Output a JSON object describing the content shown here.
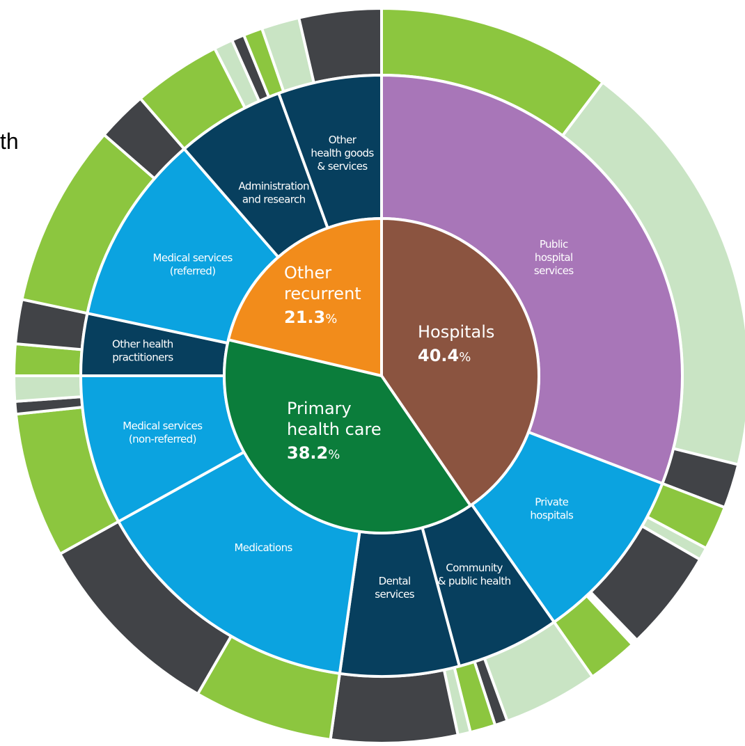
{
  "chart_data": {
    "type": "sunburst",
    "title": "",
    "clipped_text": "th",
    "inner_ring": [
      {
        "key": "hospitals",
        "name": "Hospitals",
        "pct": 40.4,
        "pct_text": "40.4",
        "unit": "%",
        "color": "#8b5440"
      },
      {
        "key": "primary",
        "name": "Primary health care",
        "lines": [
          "Primary",
          "health care"
        ],
        "pct": 38.2,
        "pct_text": "38.2",
        "unit": "%",
        "color": "#0b7d3b"
      },
      {
        "key": "other",
        "name": "Other recurrent",
        "lines": [
          "Other",
          "recurrent"
        ],
        "pct": 21.3,
        "pct_text": "21.3",
        "unit": "%",
        "color": "#f28c1b"
      }
    ],
    "middle_ring": [
      {
        "key": "public-hospital",
        "lines": [
          "Public",
          "hospital",
          "services"
        ],
        "start_deg": 0,
        "end_deg": 111,
        "color": "#a876b8"
      },
      {
        "key": "private-hospitals",
        "lines": [
          "Private",
          "hospitals"
        ],
        "start_deg": 111,
        "end_deg": 145,
        "color": "#0ba3e0"
      },
      {
        "key": "community",
        "lines": [
          "Community",
          "& public health"
        ],
        "start_deg": 145,
        "end_deg": 165,
        "color": "#073f5e"
      },
      {
        "key": "dental",
        "lines": [
          "Dental",
          "services"
        ],
        "start_deg": 165,
        "end_deg": 188,
        "color": "#073f5e"
      },
      {
        "key": "medications",
        "lines": [
          "Medications"
        ],
        "start_deg": 188,
        "end_deg": 241,
        "color": "#0ba3e0"
      },
      {
        "key": "medical-nonref",
        "lines": [
          "Medical services",
          "(non-referred)"
        ],
        "start_deg": 241,
        "end_deg": 270,
        "color": "#0ba3e0"
      },
      {
        "key": "other-practitioners",
        "lines": [
          "Other health",
          "practitioners"
        ],
        "start_deg": 270,
        "end_deg": 282,
        "color": "#073f5e"
      },
      {
        "key": "medical-ref",
        "lines": [
          "Medical services",
          "(referred)"
        ],
        "start_deg": 282,
        "end_deg": 319,
        "color": "#0ba3e0"
      },
      {
        "key": "admin-research",
        "lines": [
          "Administration",
          "and research"
        ],
        "start_deg": 319,
        "end_deg": 340,
        "color": "#073f5e"
      },
      {
        "key": "other-goods",
        "lines": [
          "Other",
          "health goods",
          "& services"
        ],
        "start_deg": 340,
        "end_deg": 360,
        "color": "#073f5e"
      }
    ],
    "outer_ring": [
      {
        "start_deg": 0,
        "end_deg": 37,
        "color": "#8cc63f"
      },
      {
        "start_deg": 37,
        "end_deg": 104,
        "color": "#c9e4c4"
      },
      {
        "start_deg": 104,
        "end_deg": 111,
        "color": "#414347"
      },
      {
        "start_deg": 111,
        "end_deg": 118,
        "color": "#8cc63f"
      },
      {
        "start_deg": 118,
        "end_deg": 120,
        "color": "#c9e4c4"
      },
      {
        "start_deg": 120,
        "end_deg": 136,
        "color": "#414347"
      },
      {
        "start_deg": 137,
        "end_deg": 145,
        "color": "#8cc63f"
      },
      {
        "start_deg": 145,
        "end_deg": 160,
        "color": "#c9e4c4"
      },
      {
        "start_deg": 160,
        "end_deg": 162,
        "color": "#414347"
      },
      {
        "start_deg": 162,
        "end_deg": 166,
        "color": "#8cc63f"
      },
      {
        "start_deg": 166,
        "end_deg": 168,
        "color": "#c9e4c4"
      },
      {
        "start_deg": 168,
        "end_deg": 188,
        "color": "#414347"
      },
      {
        "start_deg": 188,
        "end_deg": 210,
        "color": "#8cc63f"
      },
      {
        "start_deg": 210,
        "end_deg": 241,
        "color": "#414347"
      },
      {
        "start_deg": 241,
        "end_deg": 264,
        "color": "#8cc63f"
      },
      {
        "start_deg": 264,
        "end_deg": 266,
        "color": "#414347"
      },
      {
        "start_deg": 266,
        "end_deg": 270,
        "color": "#c9e4c4"
      },
      {
        "start_deg": 270,
        "end_deg": 275,
        "color": "#8cc63f"
      },
      {
        "start_deg": 275,
        "end_deg": 282,
        "color": "#414347"
      },
      {
        "start_deg": 282,
        "end_deg": 311,
        "color": "#8cc63f"
      },
      {
        "start_deg": 311,
        "end_deg": 319,
        "color": "#414347"
      },
      {
        "start_deg": 319,
        "end_deg": 333,
        "color": "#8cc63f"
      },
      {
        "start_deg": 333,
        "end_deg": 336,
        "color": "#c9e4c4"
      },
      {
        "start_deg": 336,
        "end_deg": 338,
        "color": "#414347"
      },
      {
        "start_deg": 338,
        "end_deg": 341,
        "color": "#8cc63f"
      },
      {
        "start_deg": 341,
        "end_deg": 347,
        "color": "#c9e4c4"
      },
      {
        "start_deg": 347,
        "end_deg": 360,
        "color": "#414347"
      }
    ],
    "separator_color": "#ffffff"
  }
}
